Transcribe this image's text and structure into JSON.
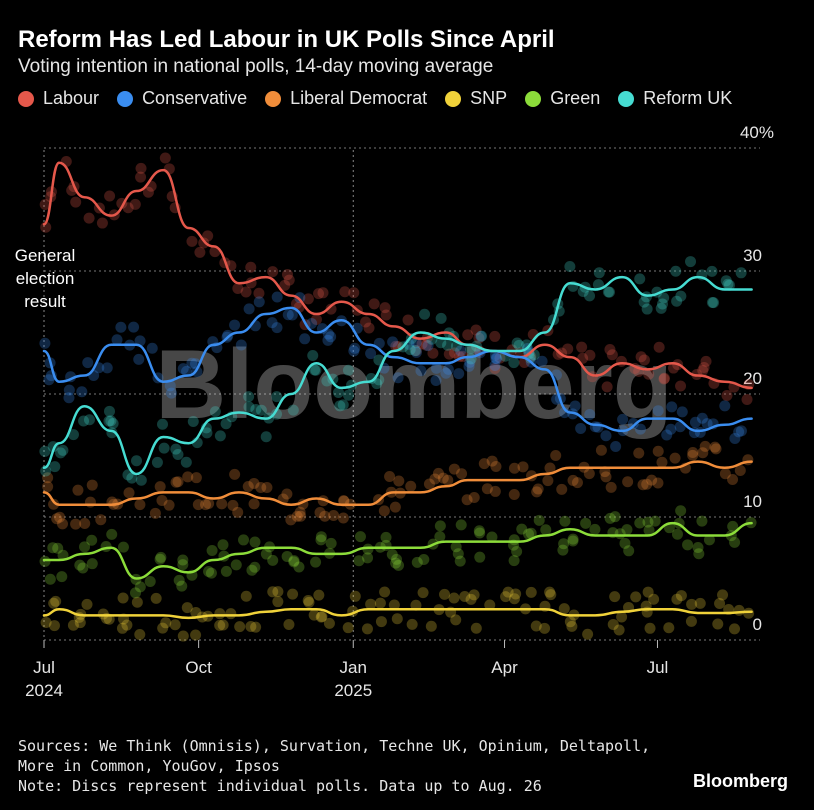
{
  "title": "Reform Has Led Labour in UK Polls Since April",
  "subtitle": "Voting intention in national polls, 14-day moving average",
  "annotation": [
    "General",
    "election",
    "result"
  ],
  "footer": {
    "sources_line1": "Sources: We Think (Omnisis), Survation, Techne UK, Opinium, Deltapoll,",
    "sources_line2": "More in Common, YouGov, Ipsos",
    "note": "Note: Discs represent individual polls. Data up to Aug. 26"
  },
  "brand": "Bloomberg",
  "watermark": "Bloomberg",
  "chart_data": {
    "type": "line",
    "title": "Reform Has Led Labour in UK Polls Since April",
    "subtitle": "Voting intention in national polls, 14-day moving average",
    "xlabel": "",
    "ylabel": "",
    "ylim": [
      0,
      40
    ],
    "ytick_labels": [
      "40%",
      "30",
      "20",
      "10",
      "0"
    ],
    "xtick_labels": [
      {
        "label": "Jul",
        "year": "2024",
        "x": "2024-07"
      },
      {
        "label": "Oct",
        "year": "",
        "x": "2024-10"
      },
      {
        "label": "Jan",
        "year": "2025",
        "x": "2025-01"
      },
      {
        "label": "Apr",
        "year": "",
        "x": "2025-04"
      },
      {
        "label": "Jul",
        "year": "",
        "x": "2025-07"
      }
    ],
    "x_range": [
      "2024-07",
      "2025-08-26"
    ],
    "grid": "horizontal dotted",
    "legend_position": "top",
    "colors": {
      "Labour": "#e5584b",
      "Conservative": "#3a8df0",
      "Liberal Democrat": "#f08d3a",
      "SNP": "#f0d23a",
      "Green": "#8cdc3a",
      "Reform UK": "#46dcd2"
    },
    "series": [
      {
        "name": "Labour",
        "x": [
          "2024-07",
          "2024-07-10",
          "2024-07-25",
          "2024-08-10",
          "2024-08-25",
          "2024-09-10",
          "2024-09-25",
          "2024-10-10",
          "2024-10-25",
          "2024-11-10",
          "2024-11-25",
          "2024-12-10",
          "2024-12-25",
          "2025-01-10",
          "2025-01-25",
          "2025-02-10",
          "2025-02-25",
          "2025-03-10",
          "2025-03-25",
          "2025-04-10",
          "2025-04-25",
          "2025-05-10",
          "2025-05-25",
          "2025-06-10",
          "2025-06-25",
          "2025-07-10",
          "2025-07-25",
          "2025-08-10",
          "2025-08-26"
        ],
        "values": [
          33.8,
          38.8,
          36.0,
          34.5,
          36.5,
          38.2,
          33.5,
          32.0,
          29.0,
          29.5,
          28.0,
          26.5,
          27.5,
          26.5,
          25.5,
          24.5,
          25.0,
          24.0,
          23.5,
          23.0,
          24.0,
          23.0,
          21.5,
          22.5,
          22.0,
          22.5,
          21.5,
          21.0,
          20.5
        ]
      },
      {
        "name": "Conservative",
        "x": [
          "2024-07",
          "2024-07-10",
          "2024-07-25",
          "2024-08-10",
          "2024-08-25",
          "2024-09-10",
          "2024-09-25",
          "2024-10-10",
          "2024-10-25",
          "2024-11-10",
          "2024-11-25",
          "2024-12-10",
          "2024-12-25",
          "2025-01-10",
          "2025-01-25",
          "2025-02-10",
          "2025-02-25",
          "2025-03-10",
          "2025-03-25",
          "2025-04-10",
          "2025-04-25",
          "2025-05-10",
          "2025-05-25",
          "2025-06-10",
          "2025-06-25",
          "2025-07-10",
          "2025-07-25",
          "2025-08-10",
          "2025-08-26"
        ],
        "values": [
          23.5,
          21.0,
          21.5,
          24.0,
          24.0,
          21.0,
          21.5,
          24.0,
          25.0,
          26.5,
          27.0,
          25.0,
          26.0,
          24.0,
          23.0,
          22.5,
          22.5,
          23.0,
          23.5,
          23.0,
          22.0,
          18.5,
          17.5,
          17.0,
          18.0,
          18.0,
          17.0,
          17.5,
          18.0
        ]
      },
      {
        "name": "Liberal Democrat",
        "x": [
          "2024-07",
          "2024-07-10",
          "2024-07-25",
          "2024-08-10",
          "2024-08-25",
          "2024-09-10",
          "2024-09-25",
          "2024-10-10",
          "2024-10-25",
          "2024-11-10",
          "2024-11-25",
          "2024-12-10",
          "2024-12-25",
          "2025-01-10",
          "2025-01-25",
          "2025-02-10",
          "2025-02-25",
          "2025-03-10",
          "2025-03-25",
          "2025-04-10",
          "2025-04-25",
          "2025-05-10",
          "2025-05-25",
          "2025-06-10",
          "2025-06-25",
          "2025-07-10",
          "2025-07-25",
          "2025-08-10",
          "2025-08-26"
        ],
        "values": [
          12.0,
          11.0,
          11.0,
          11.0,
          11.5,
          12.0,
          12.0,
          11.5,
          12.0,
          11.5,
          11.0,
          11.5,
          11.0,
          11.0,
          12.0,
          12.0,
          12.5,
          13.0,
          13.0,
          13.0,
          13.5,
          14.0,
          14.0,
          14.0,
          14.0,
          14.0,
          14.5,
          14.0,
          14.5
        ]
      },
      {
        "name": "SNP",
        "x": [
          "2024-07",
          "2024-07-10",
          "2024-07-25",
          "2024-08-10",
          "2024-08-25",
          "2024-09-10",
          "2024-09-25",
          "2024-10-10",
          "2024-10-25",
          "2024-11-10",
          "2024-11-25",
          "2024-12-10",
          "2024-12-25",
          "2025-01-10",
          "2025-01-25",
          "2025-02-10",
          "2025-02-25",
          "2025-03-10",
          "2025-03-25",
          "2025-04-10",
          "2025-04-25",
          "2025-05-10",
          "2025-05-25",
          "2025-06-10",
          "2025-06-25",
          "2025-07-10",
          "2025-07-25",
          "2025-08-10",
          "2025-08-26"
        ],
        "values": [
          2.0,
          2.5,
          2.0,
          2.0,
          2.0,
          2.0,
          1.8,
          2.0,
          2.0,
          2.3,
          2.5,
          2.5,
          2.0,
          2.5,
          2.5,
          2.5,
          2.5,
          2.5,
          2.5,
          2.5,
          2.5,
          2.0,
          2.0,
          2.3,
          2.5,
          2.5,
          2.2,
          2.2,
          2.3
        ]
      },
      {
        "name": "Green",
        "x": [
          "2024-07",
          "2024-07-10",
          "2024-07-25",
          "2024-08-10",
          "2024-08-25",
          "2024-09-10",
          "2024-09-25",
          "2024-10-10",
          "2024-10-25",
          "2024-11-10",
          "2024-11-25",
          "2024-12-10",
          "2024-12-25",
          "2025-01-10",
          "2025-01-25",
          "2025-02-10",
          "2025-02-25",
          "2025-03-10",
          "2025-03-25",
          "2025-04-10",
          "2025-04-25",
          "2025-05-10",
          "2025-05-25",
          "2025-06-10",
          "2025-06-25",
          "2025-07-10",
          "2025-07-25",
          "2025-08-10",
          "2025-08-26"
        ],
        "values": [
          6.5,
          6.5,
          7.0,
          7.5,
          5.0,
          6.0,
          5.5,
          6.5,
          7.0,
          7.5,
          7.5,
          7.0,
          7.0,
          7.5,
          7.5,
          7.5,
          8.0,
          8.0,
          8.0,
          8.0,
          8.5,
          9.0,
          8.5,
          8.5,
          8.5,
          9.5,
          8.5,
          8.5,
          9.5
        ]
      },
      {
        "name": "Reform UK",
        "x": [
          "2024-07",
          "2024-07-10",
          "2024-07-25",
          "2024-08-10",
          "2024-08-25",
          "2024-09-10",
          "2024-09-25",
          "2024-10-10",
          "2024-10-25",
          "2024-11-10",
          "2024-11-25",
          "2024-12-10",
          "2024-12-25",
          "2025-01-10",
          "2025-01-25",
          "2025-02-10",
          "2025-02-25",
          "2025-03-10",
          "2025-03-25",
          "2025-04-10",
          "2025-04-25",
          "2025-05-10",
          "2025-05-25",
          "2025-06-10",
          "2025-06-25",
          "2025-07-10",
          "2025-07-25",
          "2025-08-10",
          "2025-08-26"
        ],
        "values": [
          14.0,
          16.0,
          19.0,
          17.0,
          13.5,
          16.5,
          16.0,
          18.0,
          18.5,
          18.0,
          20.0,
          22.5,
          20.5,
          21.0,
          23.5,
          25.0,
          24.5,
          24.0,
          23.5,
          23.5,
          25.0,
          29.0,
          28.5,
          29.5,
          28.0,
          28.5,
          29.5,
          28.5,
          28.5
        ]
      }
    ]
  }
}
